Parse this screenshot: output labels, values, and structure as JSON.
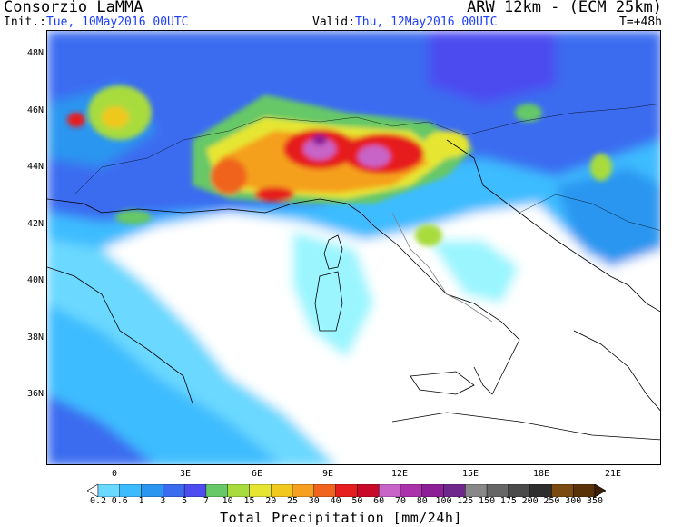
{
  "header": {
    "title_left": "Consorzio LaMMA",
    "title_right": "ARW 12km - (ECM 25km)",
    "init_label": "Init.:",
    "init_value": "Tue, 10May2016 00UTC",
    "valid_label": "Valid:",
    "valid_value": "Thu, 12May2016 00UTC",
    "lead_time": "T=+48h"
  },
  "axes": {
    "lat_labels": [
      "48N",
      "46N",
      "44N",
      "42N",
      "40N",
      "38N",
      "36N"
    ],
    "lon_labels": [
      "0",
      "3E",
      "6E",
      "9E",
      "12E",
      "15E",
      "18E",
      "21E"
    ]
  },
  "colorbar": {
    "title": "Total Precipitation [mm/24h]",
    "ticks": [
      "0.2",
      "0.6",
      "1",
      "3",
      "5",
      "7",
      "10",
      "15",
      "20",
      "25",
      "30",
      "40",
      "50",
      "60",
      "70",
      "80",
      "100",
      "125",
      "150",
      "175",
      "200",
      "250",
      "300",
      "350"
    ],
    "colors": [
      "#9af5ff",
      "#6ad8ff",
      "#3cbcff",
      "#2a96f0",
      "#3b6cf0",
      "#4c4cf0",
      "#66c866",
      "#a8dc3c",
      "#e6e632",
      "#f0c81e",
      "#f5a01e",
      "#f0641e",
      "#e61e1e",
      "#c80a28",
      "#c864c8",
      "#aa32aa",
      "#8c1e96",
      "#6e288c",
      "#888888",
      "#666666",
      "#4a4a4a",
      "#2e2e2e",
      "#7a4a10",
      "#5a3208",
      "#3c2004"
    ]
  }
}
